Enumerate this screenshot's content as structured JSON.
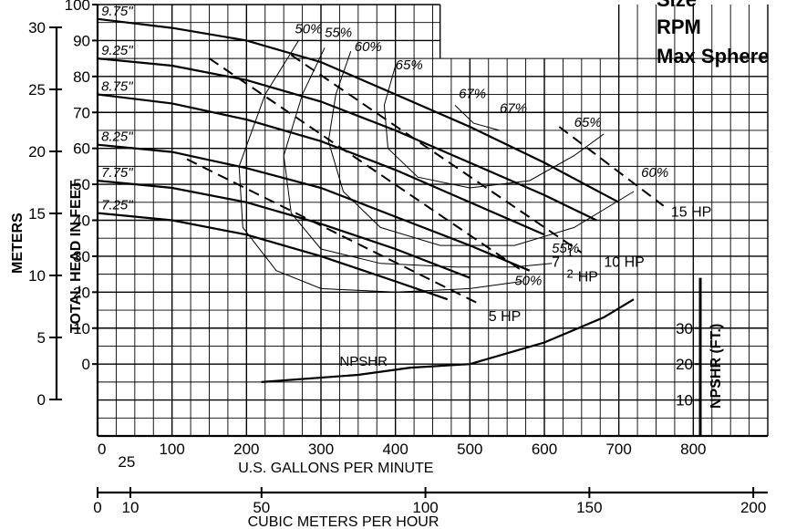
{
  "header_labels": [
    "Size",
    "RPM",
    "Max Sphere"
  ],
  "chart_data": {
    "type": "line",
    "x": {
      "label": "U.S. GALLONS PER MINUTE",
      "range": [
        0,
        900
      ],
      "ticks": [
        "0",
        "25",
        "100",
        "200",
        "300",
        "400",
        "500",
        "600",
        "700",
        "800"
      ]
    },
    "x_secondary": {
      "label": "CUBIC METERS PER HOUR",
      "ticks": [
        "0",
        "10",
        "50",
        "100",
        "150",
        "200"
      ]
    },
    "y": {
      "label": "TOTAL HEAD IN FEET",
      "range": [
        -20,
        100
      ],
      "ticks": [
        "0",
        "10",
        "20",
        "30",
        "40",
        "50",
        "60",
        "70",
        "80",
        "90",
        "100"
      ]
    },
    "y_meters": {
      "label": "METERS",
      "ticks": [
        "0",
        "5",
        "10",
        "15",
        "20",
        "25",
        "30"
      ]
    },
    "y_npshr": {
      "label": "NPSHR (FT.)",
      "ticks": [
        "10",
        "20",
        "30"
      ]
    },
    "grid": true,
    "impeller_curves": [
      {
        "name": "9.75\"",
        "points": [
          [
            0,
            96
          ],
          [
            100,
            93.5
          ],
          [
            200,
            90
          ],
          [
            300,
            84
          ],
          [
            400,
            75
          ],
          [
            500,
            66
          ],
          [
            600,
            56
          ],
          [
            700,
            45
          ]
        ]
      },
      {
        "name": "9.25\"",
        "points": [
          [
            0,
            85
          ],
          [
            100,
            83
          ],
          [
            200,
            79
          ],
          [
            300,
            73
          ],
          [
            400,
            65
          ],
          [
            500,
            56
          ],
          [
            600,
            47
          ],
          [
            670,
            40
          ]
        ]
      },
      {
        "name": "8.75\"",
        "points": [
          [
            0,
            75
          ],
          [
            100,
            72.5
          ],
          [
            200,
            68
          ],
          [
            300,
            62
          ],
          [
            400,
            54
          ],
          [
            500,
            45
          ],
          [
            600,
            36
          ]
        ]
      },
      {
        "name": "8.25\"",
        "points": [
          [
            0,
            61
          ],
          [
            100,
            59
          ],
          [
            200,
            54.5
          ],
          [
            300,
            49
          ],
          [
            400,
            41
          ],
          [
            500,
            33
          ],
          [
            580,
            26
          ]
        ]
      },
      {
        "name": "7.75\"",
        "points": [
          [
            0,
            51
          ],
          [
            100,
            49
          ],
          [
            200,
            45
          ],
          [
            300,
            39
          ],
          [
            400,
            32
          ],
          [
            500,
            24
          ]
        ]
      },
      {
        "name": "7.25\"",
        "points": [
          [
            0,
            42
          ],
          [
            100,
            40
          ],
          [
            200,
            36
          ],
          [
            300,
            30
          ],
          [
            400,
            23
          ],
          [
            470,
            18
          ]
        ]
      }
    ],
    "efficiency_labels": [
      "50%",
      "55%",
      "60%",
      "65%",
      "67%",
      "67%",
      "65%",
      "60%",
      "55%",
      "50%"
    ],
    "efficiency_curves": [
      {
        "name": "50%",
        "points": [
          [
            270,
            90
          ],
          [
            225,
            75
          ],
          [
            190,
            55
          ],
          [
            195,
            38
          ],
          [
            240,
            26
          ],
          [
            300,
            21
          ],
          [
            400,
            20
          ],
          [
            500,
            21
          ],
          [
            570,
            23
          ]
        ]
      },
      {
        "name": "55%",
        "points": [
          [
            305,
            88
          ],
          [
            275,
            75
          ],
          [
            250,
            58
          ],
          [
            260,
            42
          ],
          [
            300,
            32
          ],
          [
            380,
            28
          ],
          [
            480,
            27
          ],
          [
            560,
            27
          ],
          [
            610,
            28
          ]
        ]
      },
      {
        "name": "60%",
        "points": [
          [
            340,
            87
          ],
          [
            320,
            75
          ],
          [
            310,
            62
          ],
          [
            330,
            48
          ],
          [
            380,
            38
          ],
          [
            460,
            33
          ],
          [
            560,
            33
          ],
          [
            640,
            38
          ],
          [
            720,
            48
          ]
        ]
      },
      {
        "name": "65%",
        "points": [
          [
            400,
            83
          ],
          [
            385,
            72
          ],
          [
            390,
            60
          ],
          [
            430,
            52
          ],
          [
            500,
            49
          ],
          [
            580,
            51
          ],
          [
            640,
            58
          ],
          [
            680,
            64
          ]
        ]
      },
      {
        "name": "67%",
        "points": [
          [
            480,
            72
          ],
          [
            505,
            67
          ],
          [
            540,
            65
          ]
        ]
      }
    ],
    "power_lines": [
      {
        "name": "5 HP",
        "points": [
          [
            120,
            57
          ],
          [
            510,
            17
          ]
        ]
      },
      {
        "name": "7 1/2 HP",
        "points": [
          [
            150,
            85
          ],
          [
            570,
            26
          ]
        ]
      },
      {
        "name": "10 HP",
        "points": [
          [
            260,
            86
          ],
          [
            650,
            31
          ]
        ]
      },
      {
        "name": "15 HP",
        "points": [
          [
            620,
            66
          ],
          [
            760,
            44
          ]
        ]
      }
    ],
    "power_labels": [
      "5 HP",
      "7",
      "1",
      "2",
      "HP",
      "10 HP",
      "15 HP"
    ],
    "npshr_curve": {
      "name": "NPSHR",
      "points": [
        [
          220,
          -5
        ],
        [
          350,
          -3
        ],
        [
          420,
          -1
        ],
        [
          500,
          0
        ],
        [
          600,
          6
        ],
        [
          680,
          13
        ],
        [
          720,
          18
        ]
      ]
    }
  }
}
